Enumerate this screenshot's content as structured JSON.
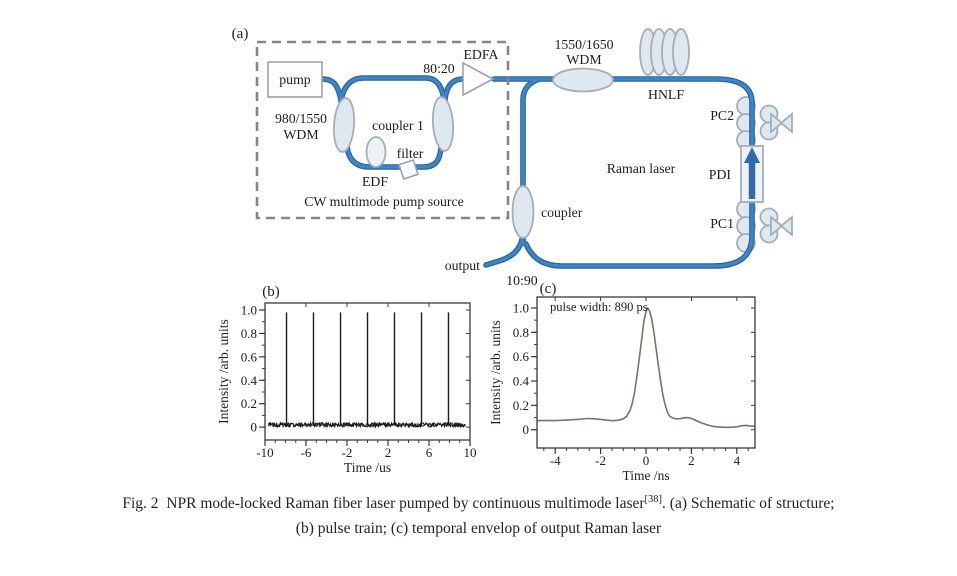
{
  "figure": {
    "panel_a": "(a)",
    "panel_b": "(b)",
    "panel_c": "(c)"
  },
  "schematic": {
    "pump_label": "pump",
    "wdm1_line1": "980/1550",
    "wdm1_line2": "WDM",
    "coupler1_label": "coupler 1",
    "edf_label": "EDF",
    "filter_label": "filter",
    "tap_ratio": "80:20",
    "edfa_label": "EDFA",
    "pump_box_label": "CW multimode pump source",
    "wdm2_line1": "1550/1650",
    "wdm2_line2": "WDM",
    "hnlf_label": "HNLF",
    "pc2_label": "PC2",
    "pdi_label": "PDI",
    "pc1_label": "PC1",
    "cavity_label": "Raman laser",
    "output_coupler_label": "coupler",
    "output_label": "output",
    "output_ratio": "10:90"
  },
  "colors": {
    "fiber": "#3d85c6",
    "fiber_outline": "#28639e",
    "component_fill": "#dfe8f0",
    "component_stroke": "#a3aeb9",
    "dashed_box": "#868686",
    "axis": "#3a3a3a",
    "curve_b": "#1c1c1c",
    "curve_c": "#7d7168",
    "text": "#1d1d1d"
  },
  "chart_data": [
    {
      "type": "pulse-train",
      "panel": "b",
      "title": "",
      "xlabel": "Time /us",
      "ylabel": "Intensity /arb. units",
      "xlim": [
        -10,
        10
      ],
      "ylim": [
        -0.11,
        1.06
      ],
      "xticks": [
        -10,
        -6,
        -2,
        2,
        6,
        10
      ],
      "yticks": [
        0,
        0.2,
        0.4,
        0.6,
        0.8,
        1
      ],
      "x_minor_step": 1,
      "y_minor_step": 0.1,
      "grid": false,
      "pulse_times": [
        -7.9,
        -5.27,
        -2.63,
        0,
        2.63,
        5.27,
        7.9
      ],
      "pulse_period_us": 2.63,
      "pulse_height": 0.98,
      "baseline": 0.02,
      "noise_amplitude": 0.018,
      "noise_span": [
        -9.7,
        9.6
      ],
      "color": "#1c1c1c"
    },
    {
      "type": "line",
      "panel": "c",
      "title": "",
      "annotation": "pulse width: 890 ps",
      "xlabel": "Time /ns",
      "ylabel": "Intensity /arb. units",
      "xlim": [
        -4.8,
        4.8
      ],
      "ylim": [
        -0.15,
        1.09
      ],
      "xticks": [
        -4,
        -2,
        0,
        2,
        4
      ],
      "yticks": [
        0,
        0.2,
        0.4,
        0.6,
        0.8,
        1
      ],
      "x_minor_step": 0.5,
      "y_minor_step": 0.1,
      "grid": false,
      "points": [
        [
          -4.8,
          0.075
        ],
        [
          -4.4,
          0.075
        ],
        [
          -4.0,
          0.075
        ],
        [
          -3.6,
          0.078
        ],
        [
          -3.2,
          0.082
        ],
        [
          -2.8,
          0.088
        ],
        [
          -2.55,
          0.092
        ],
        [
          -2.3,
          0.09
        ],
        [
          -2.0,
          0.085
        ],
        [
          -1.7,
          0.078
        ],
        [
          -1.45,
          0.074
        ],
        [
          -1.2,
          0.078
        ],
        [
          -1.0,
          0.09
        ],
        [
          -0.85,
          0.11
        ],
        [
          -0.7,
          0.16
        ],
        [
          -0.6,
          0.22
        ],
        [
          -0.5,
          0.31
        ],
        [
          -0.4,
          0.44
        ],
        [
          -0.3,
          0.58
        ],
        [
          -0.2,
          0.73
        ],
        [
          -0.1,
          0.88
        ],
        [
          0.0,
          0.97
        ],
        [
          0.07,
          1.0
        ],
        [
          0.15,
          0.98
        ],
        [
          0.25,
          0.91
        ],
        [
          0.35,
          0.8
        ],
        [
          0.45,
          0.66
        ],
        [
          0.55,
          0.52
        ],
        [
          0.65,
          0.39
        ],
        [
          0.75,
          0.28
        ],
        [
          0.85,
          0.2
        ],
        [
          0.95,
          0.14
        ],
        [
          1.05,
          0.11
        ],
        [
          1.2,
          0.095
        ],
        [
          1.4,
          0.088
        ],
        [
          1.6,
          0.095
        ],
        [
          1.75,
          0.1
        ],
        [
          1.9,
          0.098
        ],
        [
          2.1,
          0.085
        ],
        [
          2.3,
          0.068
        ],
        [
          2.5,
          0.052
        ],
        [
          2.7,
          0.04
        ],
        [
          2.9,
          0.03
        ],
        [
          3.1,
          0.024
        ],
        [
          3.4,
          0.02
        ],
        [
          3.7,
          0.02
        ],
        [
          4.0,
          0.024
        ],
        [
          4.2,
          0.032
        ],
        [
          4.4,
          0.036
        ],
        [
          4.6,
          0.03
        ],
        [
          4.8,
          0.028
        ]
      ],
      "color": "#7d7168"
    }
  ],
  "caption": {
    "line1_prefix": "Fig. 2 NPR mode-locked Raman fiber laser pumped by continuous multimode laser",
    "line1_sup": "[38]",
    "line1_suffix": ". (a) Schematic of structure;",
    "line2": "(b) pulse train; (c) temporal envelop of output Raman laser"
  }
}
